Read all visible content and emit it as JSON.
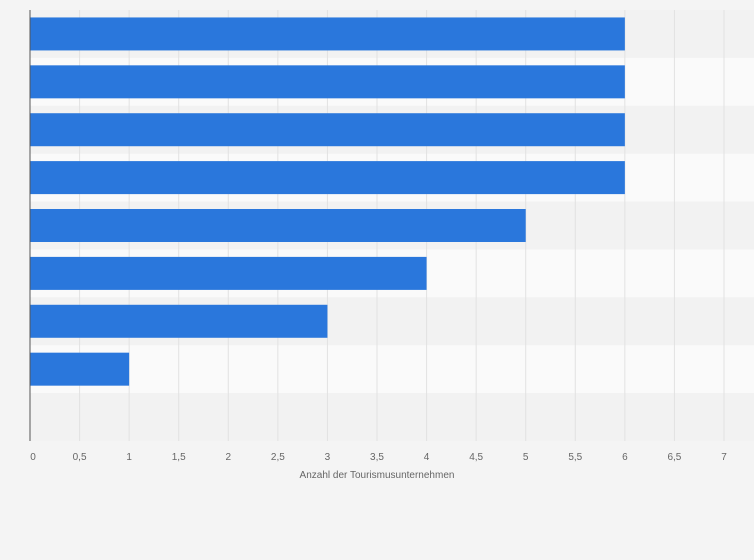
{
  "chart_data": {
    "type": "bar",
    "orientation": "horizontal",
    "categories": [
      "",
      "",
      "",
      "",
      "",
      "",
      "",
      "",
      ""
    ],
    "values": [
      6,
      6,
      6,
      6,
      5,
      4,
      3,
      1,
      0
    ],
    "title": "",
    "xlabel": "Anzahl der Tourismusunternehmen",
    "ylabel": "",
    "xlim": [
      0,
      7
    ],
    "xticks": [
      "0",
      "0,5",
      "1",
      "1,5",
      "2",
      "2,5",
      "3",
      "3,5",
      "4",
      "4,5",
      "5",
      "5,5",
      "6",
      "6,5",
      "7"
    ],
    "grid": true,
    "legend": "none",
    "colors": {
      "bar": "#2a77dc",
      "band_dark": "#f2f2f2",
      "band_light": "#fafafa",
      "grid": "#e2e2e2",
      "axis": "#555555"
    }
  }
}
